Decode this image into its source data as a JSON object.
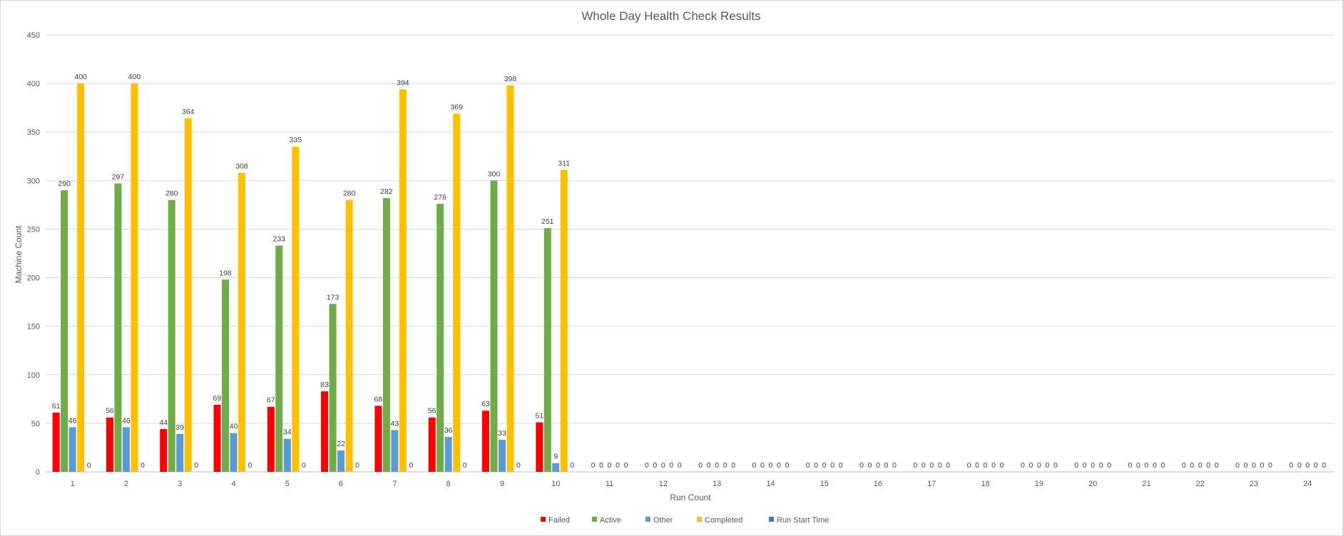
{
  "chart_data": {
    "type": "bar",
    "title": "Whole Day Health Check Results",
    "xlabel": "Run Count",
    "ylabel": "Machine Count",
    "ylim": [
      0,
      450
    ],
    "yticks": [
      0,
      50,
      100,
      150,
      200,
      250,
      300,
      350,
      400,
      450
    ],
    "grid": true,
    "legend_position": "bottom",
    "categories": [
      "1",
      "2",
      "3",
      "4",
      "5",
      "6",
      "7",
      "8",
      "9",
      "10",
      "11",
      "12",
      "13",
      "14",
      "15",
      "16",
      "17",
      "18",
      "19",
      "20",
      "21",
      "22",
      "23",
      "24"
    ],
    "series": [
      {
        "name": "Failed",
        "color": "#ff0000",
        "values": [
          61,
          56,
          44,
          69,
          67,
          83,
          68,
          56,
          63,
          51,
          0,
          0,
          0,
          0,
          0,
          0,
          0,
          0,
          0,
          0,
          0,
          0,
          0,
          0
        ]
      },
      {
        "name": "Active",
        "color": "#70ad47",
        "values": [
          290,
          297,
          280,
          198,
          233,
          173,
          282,
          276,
          300,
          251,
          0,
          0,
          0,
          0,
          0,
          0,
          0,
          0,
          0,
          0,
          0,
          0,
          0,
          0
        ]
      },
      {
        "name": "Other",
        "color": "#5b9bd5",
        "values": [
          46,
          46,
          39,
          40,
          34,
          22,
          43,
          36,
          33,
          9,
          0,
          0,
          0,
          0,
          0,
          0,
          0,
          0,
          0,
          0,
          0,
          0,
          0,
          0
        ]
      },
      {
        "name": "Completed",
        "color": "#ffc000",
        "values": [
          400,
          400,
          364,
          308,
          335,
          280,
          394,
          369,
          398,
          311,
          0,
          0,
          0,
          0,
          0,
          0,
          0,
          0,
          0,
          0,
          0,
          0,
          0,
          0
        ]
      },
      {
        "name": "Run Start Time",
        "color": "#4472c4",
        "values": [
          0,
          0,
          0,
          0,
          0,
          0,
          0,
          0,
          0,
          0,
          0,
          0,
          0,
          0,
          0,
          0,
          0,
          0,
          0,
          0,
          0,
          0,
          0,
          0
        ]
      }
    ]
  }
}
